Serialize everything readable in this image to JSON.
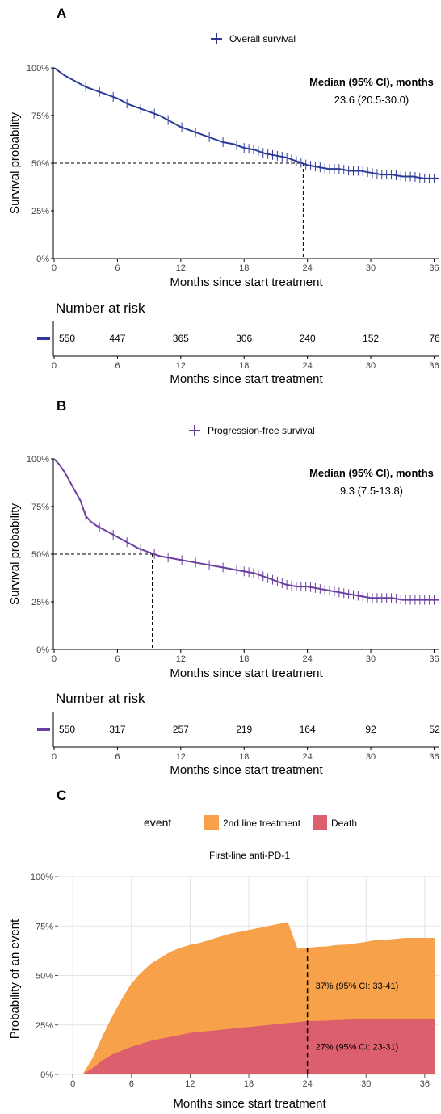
{
  "chart_data": [
    {
      "panel": "A",
      "type": "line",
      "legend": {
        "label": "Overall survival",
        "placement": "top-center"
      },
      "series": [
        {
          "name": "Overall survival",
          "color": "#2E3A97",
          "x": [
            0,
            1,
            2,
            3,
            4,
            5,
            6,
            7,
            8,
            9,
            10,
            11,
            12,
            13,
            14,
            15,
            16,
            17,
            18,
            19,
            20,
            21,
            22,
            23,
            24,
            25,
            26,
            27,
            28,
            29,
            30,
            31,
            32,
            33,
            34,
            35,
            36.5
          ],
          "y": [
            100,
            96,
            93,
            90,
            88,
            86,
            84,
            81,
            79,
            77,
            75,
            72,
            69,
            67,
            65,
            63,
            61,
            60,
            58,
            57,
            55,
            54,
            53,
            51,
            49,
            48,
            47,
            47,
            46,
            46,
            45,
            44,
            44,
            43,
            43,
            42,
            42
          ]
        }
      ],
      "median_annotation": {
        "title": "Median (95% CI), months",
        "value": "23.6 (20.5-30.0)",
        "median_x": 23.6
      },
      "x_ticks": [
        "0",
        "6",
        "12",
        "18",
        "24",
        "30",
        "36"
      ],
      "y_ticks": [
        "0%",
        "25%",
        "50%",
        "75%",
        "100%"
      ],
      "xlabel": "Months since start treatment",
      "ylabel": "Survival probability",
      "xlim": [
        0,
        36.5
      ],
      "ylim": [
        0,
        100
      ],
      "risk_table": {
        "title": "Number at risk",
        "values": [
          "550",
          "447",
          "365",
          "306",
          "240",
          "152",
          "76"
        ],
        "x_ticks": [
          "0",
          "6",
          "12",
          "18",
          "24",
          "30",
          "36"
        ],
        "xlabel": "Months since start treatment"
      }
    },
    {
      "panel": "B",
      "type": "line",
      "legend": {
        "label": "Progression-free survival",
        "placement": "top-center"
      },
      "series": [
        {
          "name": "Progression-free survival",
          "color": "#6B3FA0",
          "x": [
            0,
            0.5,
            1,
            1.5,
            2,
            2.5,
            3,
            3.5,
            4,
            5,
            6,
            7,
            8,
            9,
            10,
            11,
            12,
            13,
            14,
            15,
            16,
            17,
            18,
            19,
            20,
            21,
            22,
            23,
            24,
            25,
            26,
            27,
            28,
            29,
            30,
            31,
            32,
            33,
            34,
            35,
            36.5
          ],
          "y": [
            100,
            97,
            93,
            88,
            83,
            78,
            70,
            67,
            65,
            62,
            59,
            56,
            53,
            51,
            49,
            48,
            47,
            46,
            45,
            44,
            43,
            42,
            41,
            40,
            38,
            36,
            34,
            33,
            33,
            32,
            31,
            30,
            29,
            28,
            27,
            27,
            27,
            26,
            26,
            26,
            26
          ]
        }
      ],
      "median_annotation": {
        "title": "Median (95% CI), months",
        "value": "9.3 (7.5-13.8)",
        "median_x": 9.3
      },
      "x_ticks": [
        "0",
        "6",
        "12",
        "18",
        "24",
        "30",
        "36"
      ],
      "y_ticks": [
        "0%",
        "25%",
        "50%",
        "75%",
        "100%"
      ],
      "xlabel": "Months since start treatment",
      "ylabel": "Survival probability",
      "xlim": [
        0,
        36.5
      ],
      "ylim": [
        0,
        100
      ],
      "risk_table": {
        "title": "Number at risk",
        "values": [
          "550",
          "317",
          "257",
          "219",
          "164",
          "92",
          "52"
        ],
        "x_ticks": [
          "0",
          "6",
          "12",
          "18",
          "24",
          "30",
          "36"
        ],
        "xlabel": "Months since start treatment"
      }
    },
    {
      "panel": "C",
      "type": "area",
      "title": "First-line anti-PD-1",
      "legend": {
        "title": "event",
        "placement": "top-center",
        "entries": [
          "2nd line treatment",
          "Death"
        ]
      },
      "x": [
        0,
        0.5,
        1,
        2,
        3,
        4,
        5,
        6,
        7,
        8,
        9,
        10,
        11,
        12,
        13,
        14,
        15,
        16,
        17,
        18,
        19,
        20,
        21,
        22,
        23,
        24,
        25,
        26,
        27,
        28,
        29,
        30,
        31,
        32,
        33,
        34,
        35,
        36,
        37
      ],
      "series": [
        {
          "name": "Death",
          "color": "#DC5F6E",
          "values": [
            0,
            0,
            0,
            3,
            7,
            10,
            12,
            14,
            15.5,
            17,
            18,
            19,
            20,
            21,
            21.5,
            22,
            22.5,
            23,
            23.5,
            24,
            24.5,
            25,
            25.5,
            26,
            26.5,
            27,
            27,
            27.2,
            27.4,
            27.6,
            27.8,
            28,
            28,
            28,
            28,
            28,
            28,
            28,
            28
          ]
        },
        {
          "name": "2nd line treatment",
          "color": "#F7A14A",
          "values": [
            0,
            0,
            0,
            5,
            12,
            19,
            26,
            32,
            36,
            39,
            41,
            43,
            44,
            44.5,
            45,
            46,
            47,
            48,
            48.5,
            49,
            49.5,
            50,
            50.5,
            51,
            37,
            37,
            37.5,
            37.5,
            38,
            38,
            38.5,
            39,
            40,
            40,
            40.5,
            41,
            41,
            41,
            41
          ]
        }
      ],
      "annotations": [
        {
          "text": "37% (95% CI: 33-41)",
          "x": 24,
          "y": 45
        },
        {
          "text": "27% (95% CI: 23-31)",
          "x": 24,
          "y": 14
        }
      ],
      "x_ticks": [
        "0",
        "6",
        "12",
        "18",
        "24",
        "30",
        "36"
      ],
      "y_ticks": [
        "0%",
        "25%",
        "50%",
        "75%",
        "100%"
      ],
      "xlabel": "Months since start treatment",
      "ylabel": "Probability of an event",
      "xlim": [
        -1.5,
        37.5
      ],
      "ylim": [
        0,
        100
      ],
      "reference_x": 24
    }
  ],
  "panel_labels": [
    "A",
    "B",
    "C"
  ]
}
